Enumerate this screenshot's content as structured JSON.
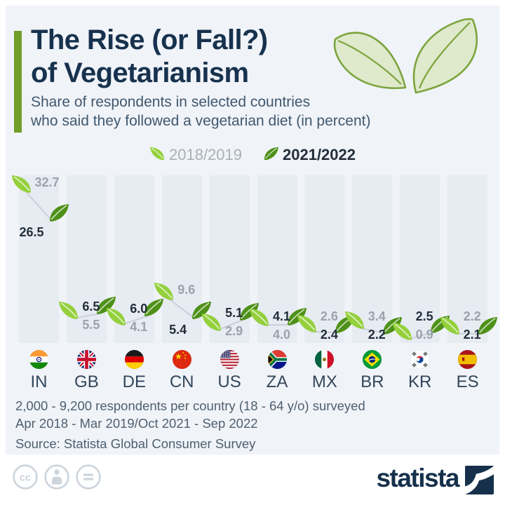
{
  "header": {
    "title_line1": "The Rise (or Fall?)",
    "title_line2": "of Vegetarianism",
    "subtitle_line1": "Share of respondents in selected countries",
    "subtitle_line2": "who said they followed a vegetarian diet (in percent)"
  },
  "legend": {
    "items": [
      {
        "label": "2018/2019"
      },
      {
        "label": "2021/2022"
      }
    ]
  },
  "chart_data": {
    "type": "dumbbell",
    "title": "The Rise (or Fall?) of Vegetarianism",
    "subtitle": "Share of respondents in selected countries who said they followed a vegetarian diet (in percent)",
    "categories": [
      "IN",
      "GB",
      "DE",
      "CN",
      "US",
      "ZA",
      "MX",
      "BR",
      "KR",
      "ES"
    ],
    "series": [
      {
        "name": "2018/2019",
        "values": [
          32.7,
          5.5,
          4.1,
          9.6,
          2.9,
          4.0,
          2.6,
          3.4,
          0.9,
          2.2
        ]
      },
      {
        "name": "2021/2022",
        "values": [
          26.5,
          6.5,
          6.0,
          5.4,
          5.1,
          4.1,
          2.4,
          2.2,
          2.5,
          2.1
        ]
      }
    ],
    "ylim": [
      0,
      36
    ],
    "grid": false,
    "legend_position": "top"
  },
  "footer": {
    "line1": "2,000 - 9,200 respondents per country (18 - 64 y/o) surveyed",
    "line2": "Apr 2018 - Mar 2019/Oct 2021 - Sep 2022",
    "line3": "Source: Statista Global Consumer Survey"
  },
  "branding": {
    "logo_text": "statista",
    "license_icons": [
      "cc-icon",
      "by-icon",
      "nd-icon"
    ]
  },
  "colors": {
    "background_panel": "#f0f3f8",
    "bar": "#e7ebf2",
    "title": "#17324e",
    "subtitle": "#40586f",
    "accent_green": "#6f9e27",
    "leaf_2018": "#94d03c",
    "leaf_2021": "#4e9118",
    "value_2018_text": "#9aa3ad",
    "value_2021_text": "#222e3a",
    "country_code": "#32465a",
    "footer_text": "#4f6070",
    "legend_2018_text": "#a9b0b8",
    "legend_2021_text": "#232e3a",
    "connector_line": "#c9d0d9",
    "cc_icon": "#ccd4dc",
    "brand_navy": "#16304b"
  }
}
